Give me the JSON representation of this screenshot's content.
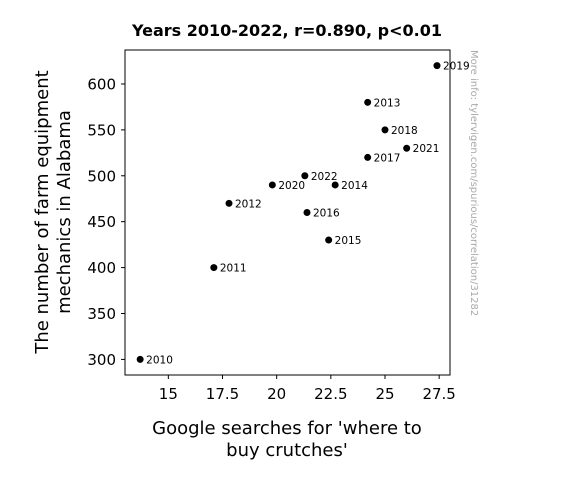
{
  "chart_data": {
    "type": "scatter",
    "title": "Years 2010-2022, r=0.890, p<0.01",
    "xlabel": "Google searches for 'where to buy crutches'",
    "ylabel": "The number of farm equipment mechanics in Alabama",
    "xlim": [
      13,
      28
    ],
    "ylim": [
      283,
      637
    ],
    "xticks": [
      15,
      17.5,
      20,
      22.5,
      25,
      27.5
    ],
    "xtick_labels": [
      "15",
      "17.5",
      "20",
      "22.5",
      "25",
      "27.5"
    ],
    "yticks": [
      300,
      350,
      400,
      450,
      500,
      550,
      600
    ],
    "ytick_labels": [
      "300",
      "350",
      "400",
      "450",
      "500",
      "550",
      "600"
    ],
    "grid": false,
    "points": [
      {
        "label": "2010",
        "x": 13.7,
        "y": 300
      },
      {
        "label": "2011",
        "x": 17.1,
        "y": 400
      },
      {
        "label": "2012",
        "x": 17.8,
        "y": 470
      },
      {
        "label": "2013",
        "x": 24.2,
        "y": 580
      },
      {
        "label": "2014",
        "x": 22.7,
        "y": 490
      },
      {
        "label": "2015",
        "x": 22.4,
        "y": 430
      },
      {
        "label": "2016",
        "x": 21.4,
        "y": 460
      },
      {
        "label": "2017",
        "x": 24.2,
        "y": 520
      },
      {
        "label": "2018",
        "x": 25.0,
        "y": 550
      },
      {
        "label": "2019",
        "x": 27.4,
        "y": 620
      },
      {
        "label": "2020",
        "x": 19.8,
        "y": 490
      },
      {
        "label": "2021",
        "x": 26.0,
        "y": 530
      },
      {
        "label": "2022",
        "x": 21.3,
        "y": 500
      }
    ],
    "marker_color": "#000000"
  },
  "watermark": "More info: tylervigen.com/spurious/correlation/31282"
}
